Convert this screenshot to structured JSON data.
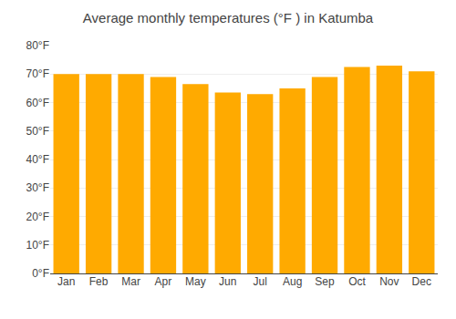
{
  "chart_data": {
    "type": "bar",
    "title": "Average monthly temperatures (°F ) in Katumba",
    "categories": [
      "Jan",
      "Feb",
      "Mar",
      "Apr",
      "May",
      "Jun",
      "Jul",
      "Aug",
      "Sep",
      "Oct",
      "Nov",
      "Dec"
    ],
    "values": [
      70.0,
      70.0,
      70.0,
      69.0,
      66.5,
      63.5,
      63.0,
      65.0,
      69.0,
      72.5,
      73.0,
      71.0
    ],
    "color": "#FFAA00",
    "ylim": [
      0,
      80
    ],
    "yticks": [
      {
        "value": 0,
        "label": "0°F"
      },
      {
        "value": 10,
        "label": "10°F"
      },
      {
        "value": 20,
        "label": "20°F"
      },
      {
        "value": 30,
        "label": "30°F"
      },
      {
        "value": 40,
        "label": "40°F"
      },
      {
        "value": 50,
        "label": "50°F"
      },
      {
        "value": 60,
        "label": "60°F"
      },
      {
        "value": 70,
        "label": "70°F"
      },
      {
        "value": 80,
        "label": "80°F"
      }
    ],
    "grid": true
  }
}
